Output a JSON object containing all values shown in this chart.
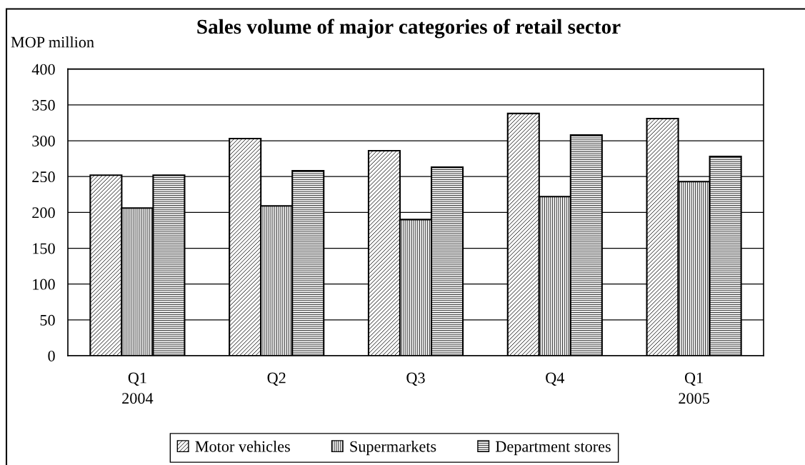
{
  "chart_data": {
    "type": "bar",
    "title": "Sales volume of major categories of retail sector",
    "ylabel": "MOP million",
    "categories": [
      "Q1\n2004",
      "Q2",
      "Q3",
      "Q4",
      "Q1\n2005"
    ],
    "series": [
      {
        "name": "Motor vehicles",
        "color": "#000000",
        "values": [
          252,
          303,
          286,
          338,
          331
        ]
      },
      {
        "name": "Supermarkets",
        "color": "#000000",
        "values": [
          206,
          209,
          190,
          222,
          243
        ]
      },
      {
        "name": "Department stores",
        "color": "#000000",
        "values": [
          252,
          258,
          263,
          308,
          278
        ]
      }
    ],
    "ylim": [
      0,
      400
    ],
    "yticks": [
      0,
      50,
      100,
      150,
      200,
      250,
      300,
      350,
      400
    ],
    "grid": "y",
    "legend": "bottom"
  }
}
